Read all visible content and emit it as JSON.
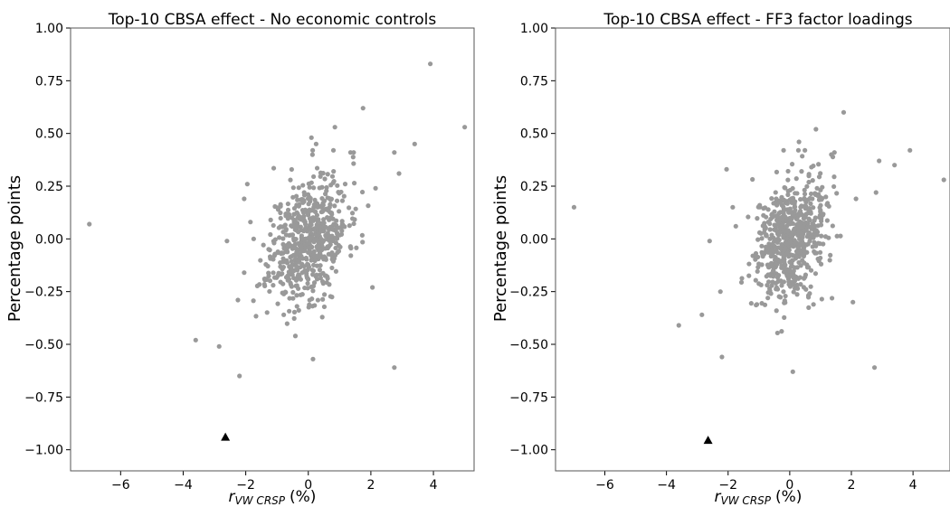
{
  "chart_data": [
    {
      "type": "scatter",
      "title": "Top-10 CBSA effect - No economic controls",
      "ylabel": "Percentage points",
      "xlabel_var": "r",
      "xlabel_sub": "VW CRSP",
      "xlabel_unit": "(%)",
      "xlim": [
        -7.6,
        5.3
      ],
      "ylim": [
        -1.1,
        1.0
      ],
      "xticks": [
        "−6",
        "−4",
        "−2",
        "0",
        "2",
        "4"
      ],
      "xtick_values": [
        -6,
        -4,
        -2,
        0,
        2,
        4
      ],
      "yticks": [
        "1.00",
        "0.75",
        "0.50",
        "0.25",
        "0.00",
        "−0.25",
        "−0.50",
        "−0.75",
        "−1.00"
      ],
      "ytick_values": [
        1.0,
        0.75,
        0.5,
        0.25,
        0.0,
        -0.25,
        -0.5,
        -0.75,
        -1.0
      ],
      "point_color": "#999999",
      "marker_color": "#000000",
      "outliers": [
        [
          -7.0,
          0.07
        ],
        [
          -3.6,
          -0.48
        ],
        [
          -2.85,
          -0.51
        ],
        [
          -2.2,
          -0.65
        ],
        [
          -2.25,
          -0.29
        ],
        [
          -2.6,
          -0.01
        ],
        [
          -2.05,
          0.19
        ],
        [
          -1.95,
          0.26
        ],
        [
          -2.05,
          -0.16
        ],
        [
          -1.85,
          0.08
        ],
        [
          0.15,
          -0.57
        ],
        [
          0.85,
          0.53
        ],
        [
          1.75,
          0.62
        ],
        [
          1.35,
          0.41
        ],
        [
          1.45,
          0.41
        ],
        [
          2.75,
          0.41
        ],
        [
          2.9,
          0.31
        ],
        [
          3.4,
          0.45
        ],
        [
          3.9,
          0.83
        ],
        [
          5.0,
          0.53
        ],
        [
          2.15,
          0.24
        ],
        [
          2.05,
          -0.23
        ],
        [
          2.75,
          -0.61
        ],
        [
          0.1,
          0.48
        ],
        [
          0.25,
          0.45
        ]
      ],
      "cluster": {
        "n": 620,
        "x_sd": 0.62,
        "y_sd": 0.15,
        "corr": 0.3,
        "seed": 11
      },
      "highlight": {
        "x": -2.65,
        "y": -0.94,
        "marker": "triangle"
      }
    },
    {
      "type": "scatter",
      "title": "Top-10 CBSA effect - FF3 factor loadings",
      "ylabel": "Percentage points",
      "xlabel_var": "r",
      "xlabel_sub": "VW CRSP",
      "xlabel_unit": "(%)",
      "xlim": [
        -7.6,
        5.2
      ],
      "ylim": [
        -1.1,
        1.0
      ],
      "xticks": [
        "−6",
        "−4",
        "−2",
        "0",
        "2",
        "4"
      ],
      "xtick_values": [
        -6,
        -4,
        -2,
        0,
        2,
        4
      ],
      "yticks": [
        "1.00",
        "0.75",
        "0.50",
        "0.25",
        "0.00",
        "−0.25",
        "−0.50",
        "−0.75",
        "−1.00"
      ],
      "ytick_values": [
        1.0,
        0.75,
        0.5,
        0.25,
        0.0,
        -0.25,
        -0.5,
        -0.75,
        -1.0
      ],
      "point_color": "#999999",
      "marker_color": "#000000",
      "outliers": [
        [
          -7.0,
          0.15
        ],
        [
          -3.6,
          -0.41
        ],
        [
          -2.85,
          -0.36
        ],
        [
          -2.6,
          -0.01
        ],
        [
          -2.25,
          -0.25
        ],
        [
          -2.2,
          -0.56
        ],
        [
          -2.05,
          0.33
        ],
        [
          -1.85,
          0.15
        ],
        [
          -1.75,
          0.06
        ],
        [
          0.1,
          -0.63
        ],
        [
          0.85,
          0.52
        ],
        [
          1.75,
          0.6
        ],
        [
          1.35,
          0.4
        ],
        [
          1.45,
          0.41
        ],
        [
          2.9,
          0.37
        ],
        [
          3.4,
          0.35
        ],
        [
          3.9,
          0.42
        ],
        [
          5.0,
          0.28
        ],
        [
          2.15,
          0.19
        ],
        [
          2.8,
          0.22
        ],
        [
          2.05,
          -0.3
        ],
        [
          2.75,
          -0.61
        ],
        [
          0.3,
          0.46
        ],
        [
          -0.2,
          0.42
        ]
      ],
      "cluster": {
        "n": 620,
        "x_sd": 0.58,
        "y_sd": 0.145,
        "corr": 0.25,
        "seed": 29
      },
      "highlight": {
        "x": -2.65,
        "y": -0.955,
        "marker": "triangle"
      }
    }
  ]
}
